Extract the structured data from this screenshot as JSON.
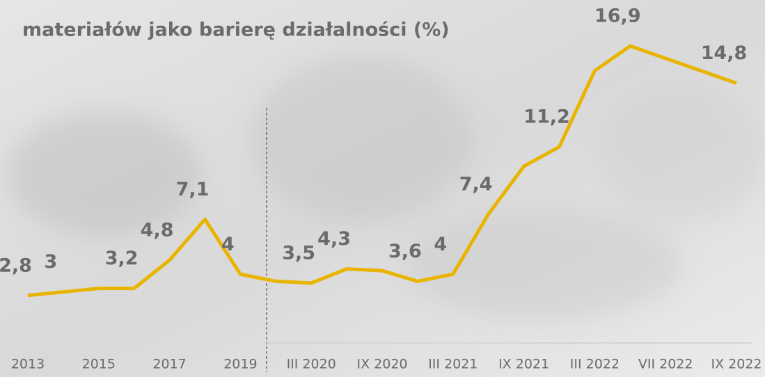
{
  "chart_data": {
    "type": "line",
    "title": "materiałów jako barierę działalności (%)",
    "categories": [
      "2013",
      null,
      "2015",
      null,
      "2017",
      null,
      "2019",
      null,
      "III 2020",
      null,
      "IX 2020",
      null,
      "III 2021",
      null,
      "IX  2021",
      null,
      "III 2022",
      null,
      "VII 2022",
      null,
      "IX 2022"
    ],
    "series": [
      {
        "color": "#e8b400",
        "values": [
          2.8,
          3,
          3.2,
          3.2,
          4.8,
          7.1,
          4,
          3.6,
          3.5,
          4.3,
          4.2,
          3.6,
          4,
          7.4,
          10.1,
          11.2,
          15.5,
          16.9,
          16.2,
          15.5,
          14.8
        ],
        "value_labels": [
          "2,8",
          "3",
          null,
          "3,2",
          "4,8",
          "7,1",
          "4",
          null,
          "3,5",
          "4,3",
          null,
          "3,6",
          "4",
          "7,4",
          null,
          "11,2",
          null,
          "16,9",
          null,
          null,
          "14,8"
        ]
      }
    ],
    "ylim": [
      0,
      19.5
    ]
  }
}
